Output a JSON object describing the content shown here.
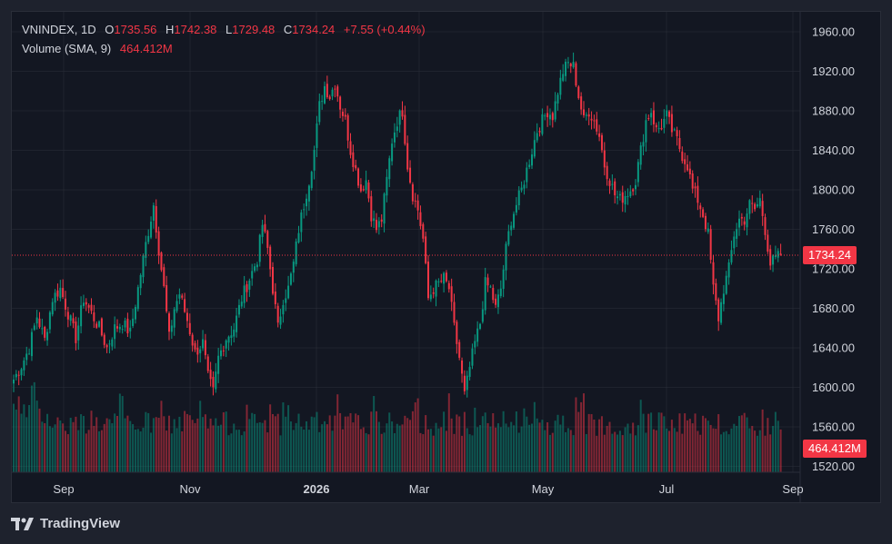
{
  "legend": {
    "symbol": "VNINDEX",
    "interval": "1D",
    "open_label": "O",
    "open": "1735.56",
    "high_label": "H",
    "high": "1742.38",
    "low_label": "L",
    "low": "1729.48",
    "close_label": "C",
    "close": "1734.24",
    "change": "+7.55 (+0.44%)",
    "volume_label": "Volume (SMA, 9)",
    "volume_value": "464.412M"
  },
  "tags": {
    "last_price": "1734.24",
    "volume": "464.412M"
  },
  "footer": {
    "brand": "TradingView",
    "logo_icon": "tradingview-logo-icon"
  },
  "colors": {
    "up": "#089981",
    "down": "#f23645",
    "background": "#131722",
    "grid": "#2a2e39",
    "text": "#d1d4dc"
  },
  "chart_data": {
    "type": "candlestick",
    "scale": "linear",
    "y_ticks": [
      "1960.00",
      "1920.00",
      "1880.00",
      "1840.00",
      "1800.00",
      "1760.00",
      "1720.00",
      "1680.00",
      "1640.00",
      "1600.00",
      "1560.00",
      "1520.00"
    ],
    "y_tick_values": [
      1960,
      1920,
      1880,
      1840,
      1800,
      1760,
      1720,
      1680,
      1640,
      1600,
      1560,
      1520
    ],
    "ylim": [
      1510,
      1968
    ],
    "x_tick_labels": [
      "Sep",
      "Nov",
      "2026",
      "Mar",
      "May",
      "Jul",
      "Sep"
    ],
    "x_tick_bold": [
      false,
      false,
      true,
      false,
      false,
      false,
      false
    ],
    "last_price": 1734.24,
    "grid": true,
    "close_path": [
      [
        0,
        1608
      ],
      [
        3,
        1622
      ],
      [
        6,
        1640
      ],
      [
        9,
        1672
      ],
      [
        12,
        1648
      ],
      [
        15,
        1690
      ],
      [
        18,
        1700
      ],
      [
        21,
        1675
      ],
      [
        24,
        1650
      ],
      [
        27,
        1690
      ],
      [
        30,
        1675
      ],
      [
        33,
        1660
      ],
      [
        36,
        1640
      ],
      [
        39,
        1660
      ],
      [
        42,
        1665
      ],
      [
        45,
        1655
      ],
      [
        48,
        1700
      ],
      [
        51,
        1745
      ],
      [
        54,
        1785
      ],
      [
        56,
        1740
      ],
      [
        58,
        1700
      ],
      [
        60,
        1650
      ],
      [
        62,
        1680
      ],
      [
        64,
        1695
      ],
      [
        67,
        1668
      ],
      [
        70,
        1635
      ],
      [
        73,
        1645
      ],
      [
        75,
        1610
      ],
      [
        77,
        1595
      ],
      [
        79,
        1630
      ],
      [
        82,
        1650
      ],
      [
        85,
        1660
      ],
      [
        88,
        1690
      ],
      [
        91,
        1710
      ],
      [
        94,
        1730
      ],
      [
        96,
        1765
      ],
      [
        98,
        1740
      ],
      [
        100,
        1700
      ],
      [
        102,
        1660
      ],
      [
        104,
        1690
      ],
      [
        106,
        1700
      ],
      [
        108,
        1725
      ],
      [
        110,
        1760
      ],
      [
        112,
        1785
      ],
      [
        114,
        1810
      ],
      [
        116,
        1840
      ],
      [
        118,
        1885
      ],
      [
        120,
        1905
      ],
      [
        122,
        1895
      ],
      [
        124,
        1908
      ],
      [
        126,
        1885
      ],
      [
        128,
        1870
      ],
      [
        130,
        1840
      ],
      [
        132,
        1820
      ],
      [
        134,
        1800
      ],
      [
        136,
        1810
      ],
      [
        138,
        1775
      ],
      [
        140,
        1760
      ],
      [
        142,
        1770
      ],
      [
        144,
        1810
      ],
      [
        146,
        1850
      ],
      [
        148,
        1870
      ],
      [
        150,
        1880
      ],
      [
        152,
        1825
      ],
      [
        154,
        1795
      ],
      [
        156,
        1780
      ],
      [
        158,
        1750
      ],
      [
        160,
        1690
      ],
      [
        162,
        1700
      ],
      [
        164,
        1705
      ],
      [
        166,
        1710
      ],
      [
        168,
        1700
      ],
      [
        170,
        1660
      ],
      [
        172,
        1630
      ],
      [
        174,
        1592
      ],
      [
        176,
        1620
      ],
      [
        178,
        1645
      ],
      [
        180,
        1665
      ],
      [
        182,
        1705
      ],
      [
        184,
        1700
      ],
      [
        186,
        1680
      ],
      [
        188,
        1700
      ],
      [
        190,
        1740
      ],
      [
        192,
        1770
      ],
      [
        194,
        1785
      ],
      [
        196,
        1800
      ],
      [
        198,
        1820
      ],
      [
        200,
        1840
      ],
      [
        202,
        1860
      ],
      [
        204,
        1870
      ],
      [
        206,
        1880
      ],
      [
        208,
        1875
      ],
      [
        210,
        1900
      ],
      [
        212,
        1920
      ],
      [
        214,
        1928
      ],
      [
        216,
        1925
      ],
      [
        218,
        1895
      ],
      [
        220,
        1870
      ],
      [
        222,
        1880
      ],
      [
        224,
        1870
      ],
      [
        226,
        1855
      ],
      [
        228,
        1825
      ],
      [
        230,
        1810
      ],
      [
        232,
        1795
      ],
      [
        234,
        1790
      ],
      [
        236,
        1795
      ],
      [
        238,
        1800
      ],
      [
        240,
        1810
      ],
      [
        242,
        1840
      ],
      [
        244,
        1870
      ],
      [
        246,
        1880
      ],
      [
        248,
        1860
      ],
      [
        250,
        1865
      ],
      [
        252,
        1875
      ],
      [
        254,
        1860
      ],
      [
        256,
        1850
      ],
      [
        258,
        1835
      ],
      [
        260,
        1825
      ],
      [
        262,
        1800
      ],
      [
        264,
        1790
      ],
      [
        266,
        1775
      ],
      [
        268,
        1755
      ],
      [
        270,
        1700
      ],
      [
        272,
        1670
      ],
      [
        274,
        1700
      ],
      [
        276,
        1720
      ],
      [
        278,
        1755
      ],
      [
        280,
        1770
      ],
      [
        282,
        1770
      ],
      [
        284,
        1785
      ],
      [
        286,
        1780
      ],
      [
        288,
        1790
      ],
      [
        290,
        1760
      ],
      [
        292,
        1725
      ],
      [
        294,
        1730
      ],
      [
        296,
        1734.24
      ]
    ],
    "volume_series": {
      "name": "Volume (SMA, 9)",
      "last": "464.412M",
      "typical_range_m": [
        350,
        870
      ]
    }
  }
}
